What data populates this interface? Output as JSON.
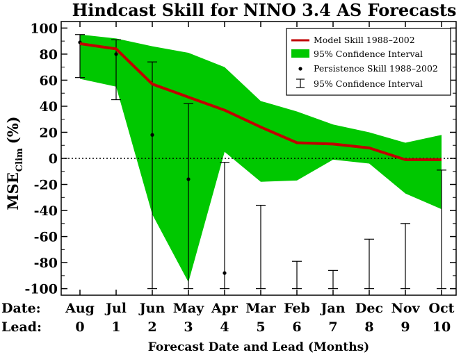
{
  "chart_data": {
    "type": "line",
    "title": "Hindcast Skill for NINO 3.4 AS Forecasts",
    "xlabel": "Forecast Date and Lead (Months)",
    "ylabel_main": "MSE",
    "ylabel_sub": "Clim",
    "ylabel_unit": "(%)",
    "row_labels": {
      "date": "Date:",
      "lead": "Lead:"
    },
    "categories": [
      "Aug",
      "Jul",
      "Jun",
      "May",
      "Apr",
      "Mar",
      "Feb",
      "Jan",
      "Dec",
      "Nov",
      "Oct"
    ],
    "leads": [
      "0",
      "1",
      "2",
      "3",
      "4",
      "5",
      "6",
      "7",
      "8",
      "9",
      "10"
    ],
    "ylim": [
      -105,
      105
    ],
    "yticks": [
      100,
      80,
      60,
      40,
      20,
      0,
      -20,
      -40,
      -60,
      -80,
      -100
    ],
    "zero_line": true,
    "legend_position": "top-right",
    "legend": [
      "Model Skill 1988–2002",
      "95% Confidence Interval",
      "Persistence Skill 1988–2002",
      "95% Confidence Interval"
    ],
    "series": [
      {
        "name": "Model Skill 1988–2002",
        "values": [
          88,
          84,
          57,
          47,
          37,
          24,
          12,
          11,
          8,
          -1,
          -1
        ],
        "ci_lower": [
          61,
          55,
          -43,
          -95,
          5,
          -18,
          -17,
          -1,
          -4,
          -27,
          -39
        ],
        "ci_upper": [
          95,
          92,
          86,
          81,
          70,
          44,
          36,
          26,
          20,
          12,
          18
        ]
      },
      {
        "name": "Persistence Skill 1988–2002",
        "values": [
          89,
          80,
          18,
          -16,
          -88,
          null,
          null,
          null,
          null,
          null,
          null
        ],
        "ci_lower": [
          62,
          45,
          -100,
          -100,
          -100,
          -100,
          -100,
          -100,
          -100,
          -100,
          -100
        ],
        "ci_upper": [
          95,
          91,
          74,
          42,
          -3,
          -36,
          -79,
          -86,
          -62,
          -50,
          -9
        ]
      }
    ],
    "colors": {
      "model_line": "#c00000",
      "model_ci": "#00c800",
      "persistence": "#000000",
      "zero_line": "#000000"
    }
  }
}
